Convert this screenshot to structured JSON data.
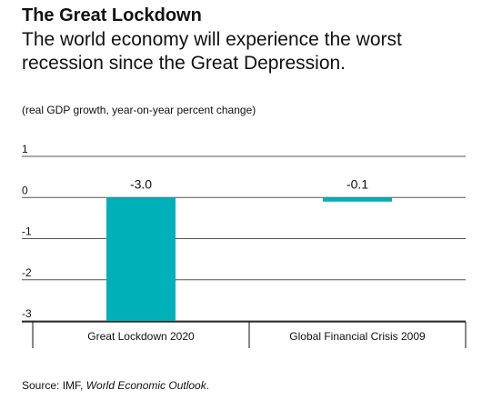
{
  "header": {
    "title": "The Great Lockdown",
    "subtitle": "The world economy will experience the worst recession since the Great Depression."
  },
  "note": "(real GDP growth, year-on-year percent change)",
  "source": {
    "prefix": "Source: IMF, ",
    "publication": "World Economic Outlook",
    "suffix": "."
  },
  "chart_data": {
    "type": "bar",
    "title": "The Great Lockdown",
    "subtitle": "The world economy will experience the worst recession since the Great Depression.",
    "ylabel": "(real GDP growth, year-on-year percent change)",
    "xlabel": "",
    "categories": [
      "Great Lockdown 2020",
      "Global Financial Crisis 2009"
    ],
    "values": [
      -3.0,
      -0.1
    ],
    "data_labels": [
      "-3.0",
      "-0.1"
    ],
    "yticks": [
      "1",
      "0",
      "-1",
      "-2",
      "-3"
    ],
    "ylim": [
      -3,
      1
    ],
    "grid": true,
    "bar_color": "#00b0b9",
    "legend": "none"
  }
}
